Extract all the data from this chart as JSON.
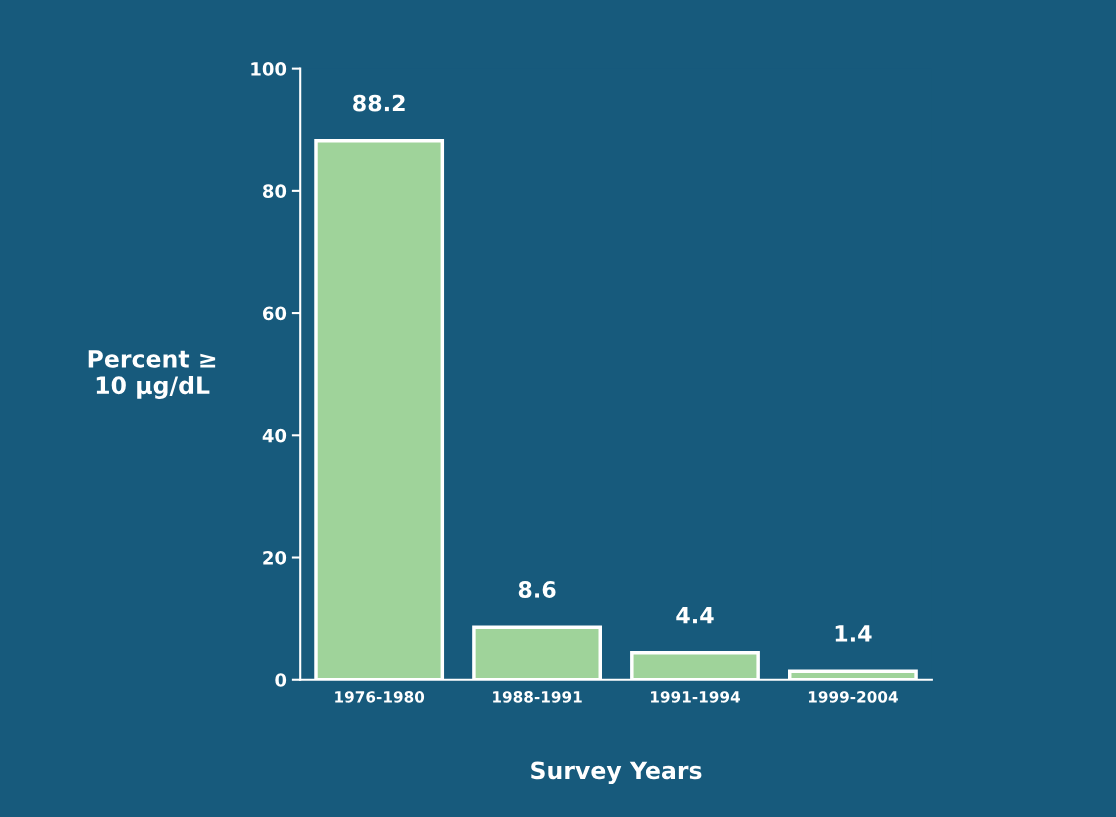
{
  "chart_data": {
    "type": "bar",
    "categories": [
      "1976-1980",
      "1988-1991",
      "1991-1994",
      "1999-2004"
    ],
    "values": [
      88.2,
      8.6,
      4.4,
      1.4
    ],
    "color": "#9fd39a",
    "ylabel": "Percent ≥\n10 µg/dL",
    "xlabel": "Survey Years",
    "ylim": [
      0,
      100
    ],
    "yticks": [
      0,
      20,
      40,
      60,
      80,
      100
    ],
    "data_labels": true,
    "grid": false,
    "legend": false
  }
}
